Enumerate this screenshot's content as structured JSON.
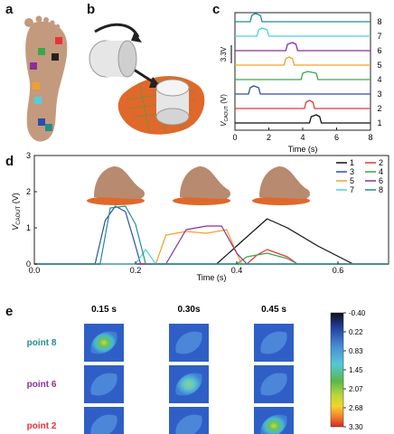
{
  "panel_labels": {
    "a": "a",
    "b": "b",
    "c": "c",
    "d": "d",
    "e": "e"
  },
  "colors": {
    "s1": "#111111",
    "s2": "#e8333a",
    "s3": "#2a4fa8",
    "s4": "#3aa64a",
    "s5": "#f2a02a",
    "s6": "#8a2f9a",
    "s7": "#4fd0dd",
    "s8": "#258c8c"
  },
  "foot_sensor_colors": [
    "#e8333a",
    "#222222",
    "#3aa64a",
    "#8a2f9a",
    "#f2a02a",
    "#4fd0dd",
    "#2a4fa8",
    "#258c8c"
  ],
  "panel_c": {
    "xlabel": "Time (s)",
    "ylabel": "V",
    "ylabel_sub": "CAOUT",
    "ylabel_unit": " (V)",
    "scalebar_label": "3.3V",
    "x_ticks": [
      "0",
      "2",
      "4",
      "6",
      "8"
    ],
    "row_labels": [
      "8",
      "7",
      "6",
      "5",
      "4",
      "3",
      "2",
      "1"
    ]
  },
  "panel_d": {
    "xlabel": "Time (s)",
    "ylabel": "V",
    "ylabel_sub": "CAOUT",
    "ylabel_unit": " (V)",
    "x_ticks": [
      "0.0",
      "0.2",
      "0.4",
      "0.6"
    ],
    "y_ticks": [
      "0",
      "1",
      "2",
      "3"
    ],
    "legend": [
      "1",
      "2",
      "3",
      "4",
      "5",
      "6",
      "7",
      "8"
    ]
  },
  "panel_e": {
    "col_labels": [
      "0.15 s",
      "0.30s",
      "0.45 s"
    ],
    "row_labels": [
      "point 8",
      "point 6",
      "point 2"
    ],
    "colorbar_ticks": [
      "-0.40",
      "0.22",
      "0.83",
      "1.45",
      "2.07",
      "2.68",
      "3.30"
    ]
  },
  "chart_data": [
    {
      "type": "line",
      "title": "",
      "xlabel": "Time (s)",
      "ylabel": "VCAOUT (V)",
      "xlim": [
        0,
        8
      ],
      "series": [
        {
          "name": "1",
          "pulse": [
            4.4,
            5.1
          ],
          "peak": 4.8
        },
        {
          "name": "2",
          "pulse": [
            4.1,
            4.7
          ],
          "peak": 4.4
        },
        {
          "name": "3",
          "pulse": [
            0.8,
            1.5
          ],
          "peak": 1.1
        },
        {
          "name": "4",
          "pulse": [
            3.9,
            4.9
          ],
          "peak": 4.3
        },
        {
          "name": "5",
          "pulse": [
            2.9,
            3.5
          ],
          "peak": 3.2
        },
        {
          "name": "6",
          "pulse": [
            3.0,
            3.7
          ],
          "peak": 3.4
        },
        {
          "name": "7",
          "pulse": [
            1.3,
            2.0
          ],
          "peak": 1.6
        },
        {
          "name": "8",
          "pulse": [
            0.9,
            1.6
          ],
          "peak": 1.2
        }
      ]
    },
    {
      "type": "line",
      "title": "",
      "xlabel": "Time (s)",
      "ylabel": "VCAOUT (V)",
      "xlim": [
        0,
        0.7
      ],
      "ylim": [
        0,
        3
      ],
      "series": [
        {
          "name": "1",
          "points": [
            [
              0,
              0
            ],
            [
              0.36,
              0
            ],
            [
              0.4,
              0.5
            ],
            [
              0.44,
              1.0
            ],
            [
              0.46,
              1.25
            ],
            [
              0.5,
              1.0
            ],
            [
              0.56,
              0.5
            ],
            [
              0.63,
              0
            ],
            [
              0.7,
              0
            ]
          ]
        },
        {
          "name": "2",
          "points": [
            [
              0,
              0
            ],
            [
              0.42,
              0
            ],
            [
              0.44,
              0.25
            ],
            [
              0.46,
              0.4
            ],
            [
              0.5,
              0.2
            ],
            [
              0.52,
              0
            ],
            [
              0.7,
              0
            ]
          ]
        },
        {
          "name": "3",
          "points": [
            [
              0,
              0
            ],
            [
              0.12,
              0
            ],
            [
              0.14,
              1.2
            ],
            [
              0.16,
              1.6
            ],
            [
              0.18,
              1.45
            ],
            [
              0.2,
              0.5
            ],
            [
              0.21,
              0
            ],
            [
              0.7,
              0
            ]
          ]
        },
        {
          "name": "4",
          "points": [
            [
              0,
              0
            ],
            [
              0.4,
              0
            ],
            [
              0.42,
              0.2
            ],
            [
              0.46,
              0.3
            ],
            [
              0.5,
              0.15
            ],
            [
              0.52,
              0
            ],
            [
              0.7,
              0
            ]
          ]
        },
        {
          "name": "5",
          "points": [
            [
              0,
              0
            ],
            [
              0.24,
              0
            ],
            [
              0.26,
              0.8
            ],
            [
              0.3,
              0.9
            ],
            [
              0.34,
              0.85
            ],
            [
              0.38,
              0.95
            ],
            [
              0.4,
              0.3
            ],
            [
              0.41,
              0
            ],
            [
              0.7,
              0
            ]
          ]
        },
        {
          "name": "6",
          "points": [
            [
              0,
              0
            ],
            [
              0.26,
              0
            ],
            [
              0.3,
              0.95
            ],
            [
              0.34,
              1.05
            ],
            [
              0.37,
              1.05
            ],
            [
              0.4,
              0.3
            ],
            [
              0.42,
              0
            ],
            [
              0.7,
              0
            ]
          ]
        },
        {
          "name": "7",
          "points": [
            [
              0,
              0
            ],
            [
              0.2,
              0
            ],
            [
              0.22,
              0.4
            ],
            [
              0.24,
              0
            ],
            [
              0.7,
              0
            ]
          ]
        },
        {
          "name": "8",
          "points": [
            [
              0,
              0
            ],
            [
              0.13,
              0
            ],
            [
              0.15,
              1.55
            ],
            [
              0.18,
              1.6
            ],
            [
              0.2,
              1.1
            ],
            [
              0.22,
              0
            ],
            [
              0.7,
              0
            ]
          ]
        }
      ]
    }
  ]
}
